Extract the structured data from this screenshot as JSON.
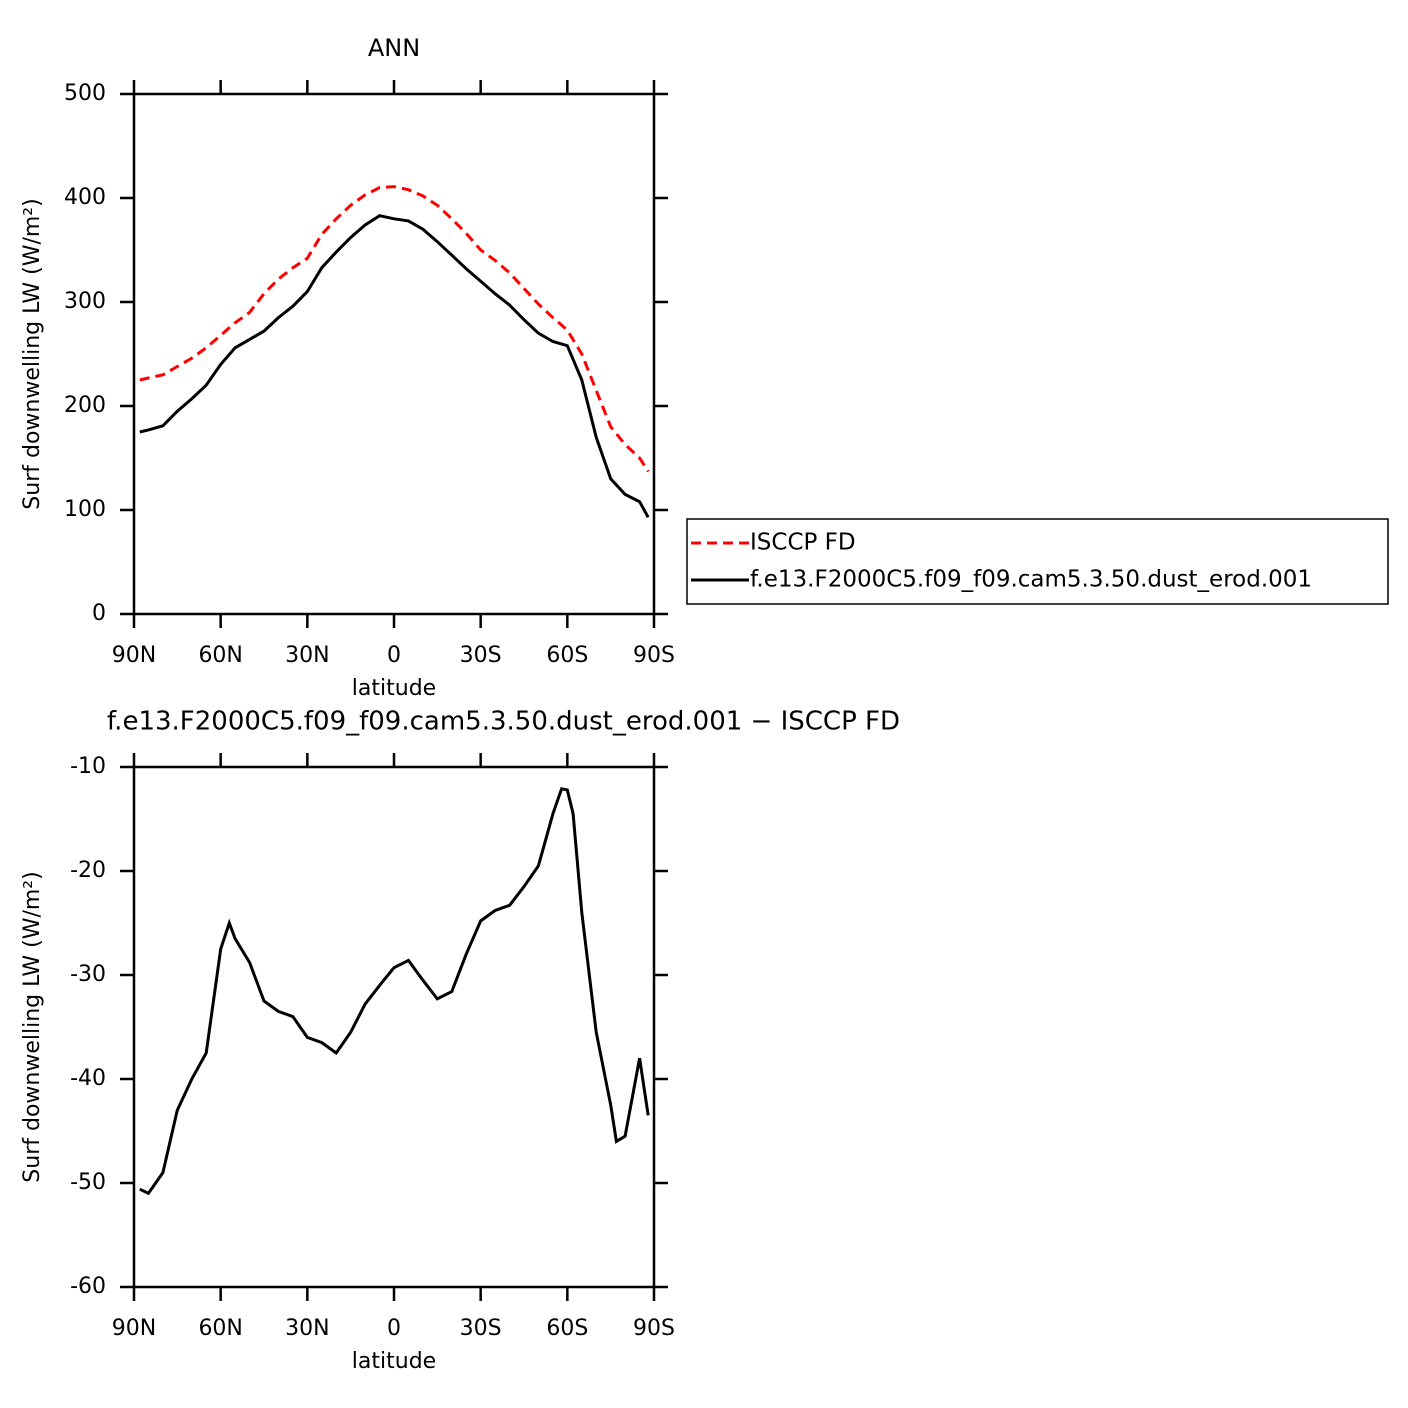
{
  "chart_data": [
    {
      "type": "line",
      "title": "ANN",
      "xlabel": "latitude",
      "ylabel": "Surf downwelling LW (W/m²)",
      "x": [
        88,
        85,
        80,
        75,
        70,
        65,
        60,
        55,
        50,
        45,
        40,
        35,
        30,
        25,
        20,
        15,
        10,
        5,
        0,
        -5,
        -10,
        -15,
        -20,
        -25,
        -30,
        -35,
        -40,
        -45,
        -50,
        -55,
        -60,
        -65,
        -70,
        -75,
        -80,
        -85,
        -88
      ],
      "series": [
        {
          "name": "ISCCP FD",
          "color": "#ff0000",
          "style": "dashed",
          "values": [
            225,
            227,
            230,
            238,
            246,
            256,
            268,
            280,
            290,
            308,
            322,
            333,
            342,
            365,
            380,
            393,
            403,
            410,
            411,
            408,
            402,
            393,
            380,
            366,
            350,
            340,
            328,
            313,
            298,
            285,
            273,
            250,
            215,
            180,
            163,
            150,
            137
          ]
        },
        {
          "name": "f.e13.F2000C5.f09_f09.cam5.3.50.dust_erod.001",
          "color": "#000000",
          "style": "solid",
          "values": [
            175,
            177,
            181,
            195,
            207,
            220,
            240,
            256,
            264,
            272,
            285,
            296,
            310,
            333,
            348,
            362,
            374,
            383,
            380,
            378,
            370,
            358,
            345,
            332,
            320,
            308,
            297,
            283,
            270,
            262,
            258,
            225,
            170,
            130,
            115,
            108,
            93
          ]
        }
      ],
      "xlim": [
        90,
        -90
      ],
      "xticks": [
        {
          "value": 90,
          "label": "90N"
        },
        {
          "value": 60,
          "label": "60N"
        },
        {
          "value": 30,
          "label": "30N"
        },
        0,
        {
          "value": -30,
          "label": "30S"
        },
        {
          "value": -60,
          "label": "60S"
        },
        {
          "value": -90,
          "label": "90S"
        }
      ],
      "ylim": [
        0,
        500
      ],
      "yticks": [
        0,
        100,
        200,
        300,
        400,
        500
      ],
      "legend": "right"
    },
    {
      "type": "line",
      "title": "f.e13.F2000C5.f09_f09.cam5.3.50.dust_erod.001 − ISCCP FD",
      "xlabel": "latitude",
      "ylabel": "Surf downwelling LW (W/m²)",
      "x": [
        88,
        85,
        80,
        75,
        70,
        65,
        60,
        57,
        55,
        50,
        45,
        40,
        35,
        30,
        25,
        20,
        15,
        10,
        5,
        0,
        -5,
        -10,
        -15,
        -20,
        -25,
        -30,
        -35,
        -40,
        -45,
        -50,
        -55,
        -58,
        -60,
        -62,
        -65,
        -70,
        -75,
        -77,
        -80,
        -85,
        -88
      ],
      "values": [
        -50.6,
        -51,
        -49,
        -43,
        -40,
        -37.5,
        -27.5,
        -25,
        -26.5,
        -28.8,
        -32.5,
        -33.5,
        -34,
        -36,
        -36.5,
        -37.5,
        -35.5,
        -32.8,
        -31,
        -29.3,
        -28.6,
        -30.5,
        -32.3,
        -31.6,
        -28,
        -24.8,
        -23.8,
        -23.3,
        -21.5,
        -19.5,
        -14.5,
        -12.1,
        -12.2,
        -14.5,
        -24,
        -35.5,
        -42.5,
        -46,
        -45.5,
        -38,
        -43.5
      ],
      "color": "#000000",
      "xlim": [
        90,
        -90
      ],
      "xticks": [
        {
          "value": 90,
          "label": "90N"
        },
        {
          "value": 60,
          "label": "60N"
        },
        {
          "value": 30,
          "label": "30N"
        },
        0,
        {
          "value": -30,
          "label": "30S"
        },
        {
          "value": -60,
          "label": "60S"
        },
        {
          "value": -90,
          "label": "90S"
        }
      ],
      "ylim": [
        -60,
        -10
      ],
      "yticks": [
        -60,
        -50,
        -40,
        -30,
        -20,
        -10
      ]
    }
  ]
}
